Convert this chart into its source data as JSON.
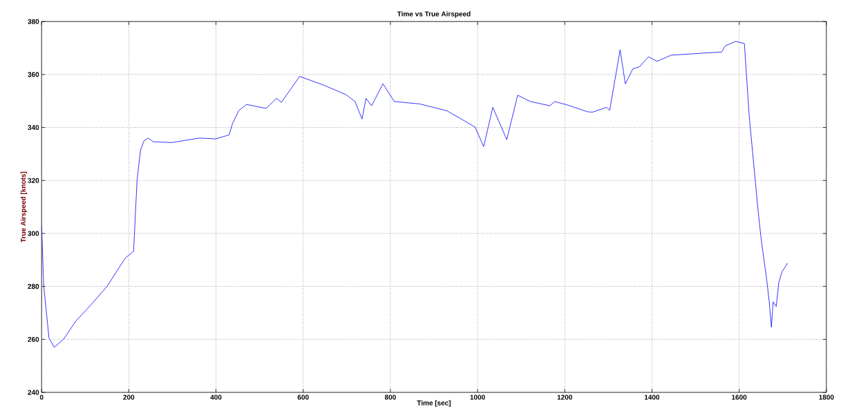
{
  "chart_data": {
    "type": "line",
    "title": "Time vs True Airspeed",
    "xlabel": "Time [sec]",
    "ylabel": "True Airspeed [knots]",
    "xlim": [
      0,
      1800
    ],
    "xticks": [
      0,
      200,
      400,
      600,
      800,
      1000,
      1200,
      1400,
      1600,
      1800
    ],
    "ylim": [
      240,
      380
    ],
    "yticks": [
      240,
      260,
      280,
      300,
      320,
      340,
      360,
      380
    ],
    "grid": true,
    "line_style": "solid",
    "series": [
      {
        "color": "#0000ff",
        "x": [
          0,
          5,
          17,
          29,
          50,
          79,
          113,
          150,
          192,
          211,
          219,
          227,
          235,
          245,
          256,
          298,
          362,
          399,
          430,
          438,
          452,
          470,
          515,
          539,
          550,
          592,
          650,
          698,
          719,
          735,
          744,
          757,
          783,
          809,
          867,
          930,
          994,
          1014,
          1035,
          1067,
          1092,
          1121,
          1166,
          1177,
          1206,
          1253,
          1264,
          1296,
          1303,
          1327,
          1339,
          1356,
          1372,
          1392,
          1412,
          1444,
          1560,
          1568,
          1592,
          1612,
          1623,
          1642,
          1650,
          1663,
          1669,
          1674,
          1678,
          1685,
          1691,
          1698,
          1711
        ],
        "values": [
          303,
          280,
          260.5,
          257,
          260,
          267,
          273,
          280,
          290.7,
          293.3,
          320.2,
          331.5,
          335,
          336,
          334.6,
          334.3,
          336,
          335.7,
          337.2,
          341.5,
          346.3,
          348.7,
          347.2,
          351,
          349.5,
          359.3,
          355.8,
          352.4,
          349.8,
          343.2,
          351,
          348.2,
          356.5,
          349.8,
          348.9,
          346.3,
          340.2,
          332.8,
          347.6,
          335.4,
          352.2,
          349.8,
          348.2,
          349.8,
          348.5,
          345.9,
          345.8,
          347.6,
          346.5,
          369.3,
          356.5,
          362.1,
          363,
          366.7,
          365,
          367.3,
          368.5,
          370.8,
          372.5,
          371.7,
          344.5,
          311,
          298.5,
          282.8,
          274.2,
          264.6,
          274.2,
          272.4,
          281.5,
          285.4,
          288.8
        ]
      }
    ]
  }
}
